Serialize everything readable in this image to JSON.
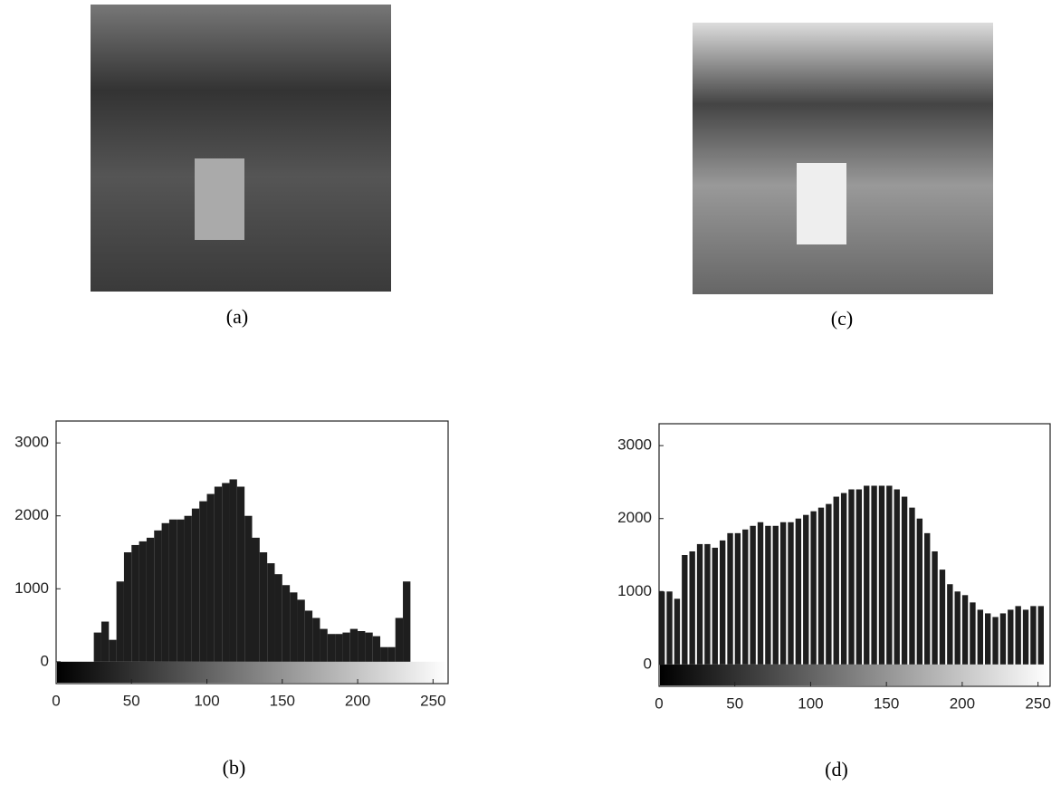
{
  "images": [
    {
      "caption": "(a)"
    },
    {
      "caption": "(c)"
    }
  ],
  "chart_data": [
    {
      "type": "histogram",
      "caption": "(b)",
      "color": "#1e1e1e",
      "bins": [
        0,
        5,
        10,
        15,
        20,
        25,
        30,
        35,
        40,
        45,
        50,
        55,
        60,
        65,
        70,
        75,
        80,
        85,
        90,
        95,
        100,
        105,
        110,
        115,
        120,
        125,
        130,
        135,
        140,
        145,
        150,
        155,
        160,
        165,
        170,
        175,
        180,
        185,
        190,
        195,
        200,
        205,
        210,
        215,
        220,
        225,
        230,
        235
      ],
      "values": [
        0,
        0,
        0,
        0,
        0,
        400,
        550,
        300,
        1100,
        1500,
        1600,
        1650,
        1700,
        1800,
        1900,
        1950,
        1950,
        2000,
        2100,
        2200,
        2300,
        2400,
        2450,
        2500,
        2400,
        2000,
        1700,
        1500,
        1350,
        1200,
        1050,
        950,
        850,
        700,
        600,
        450,
        380,
        380,
        400,
        450,
        420,
        400,
        350,
        200,
        200,
        600,
        1100
      ],
      "xlim": [
        0,
        260
      ],
      "xticks": [
        0,
        50,
        100,
        150,
        200,
        250
      ],
      "ylim": [
        -300,
        3300
      ],
      "yticks": [
        0,
        1000,
        2000,
        3000
      ]
    },
    {
      "type": "histogram",
      "caption": "(d)",
      "color": "#1e1e1e",
      "bins": [
        0,
        5,
        10,
        15,
        20,
        25,
        30,
        35,
        40,
        45,
        50,
        55,
        60,
        65,
        70,
        75,
        80,
        85,
        90,
        95,
        100,
        105,
        110,
        115,
        120,
        125,
        130,
        135,
        140,
        145,
        150,
        155,
        160,
        165,
        170,
        175,
        180,
        185,
        190,
        195,
        200,
        205,
        210,
        215,
        220,
        225,
        230,
        235,
        240,
        245,
        250,
        255
      ],
      "values": [
        1000,
        1000,
        900,
        1500,
        1550,
        1650,
        1650,
        1600,
        1700,
        1800,
        1800,
        1850,
        1900,
        1950,
        1900,
        1900,
        1950,
        1950,
        2000,
        2050,
        2100,
        2150,
        2200,
        2300,
        2350,
        2400,
        2400,
        2450,
        2450,
        2450,
        2450,
        2400,
        2300,
        2150,
        2000,
        1800,
        1550,
        1300,
        1100,
        1000,
        950,
        850,
        750,
        700,
        650,
        700,
        750,
        800,
        750,
        800,
        800
      ],
      "xlim": [
        0,
        258
      ],
      "xticks": [
        0,
        50,
        100,
        150,
        200,
        250
      ],
      "ylim": [
        -300,
        3300
      ],
      "yticks": [
        0,
        1000,
        2000,
        3000
      ]
    }
  ]
}
